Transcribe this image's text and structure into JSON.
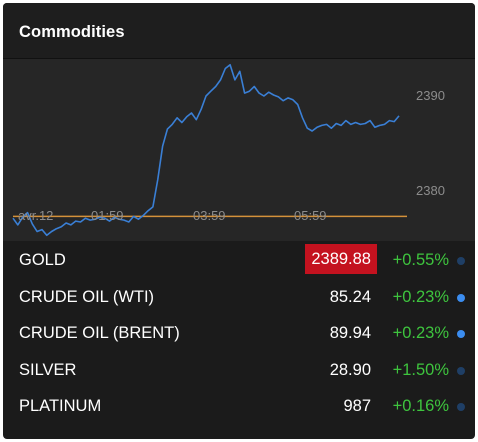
{
  "widget": {
    "title": "Commodities"
  },
  "chart_data": {
    "type": "line",
    "x_ticks": [
      "avr.12",
      "01:59",
      "03:59",
      "05:59"
    ],
    "y_ticks": [
      2390,
      2380
    ],
    "ylim": [
      2374.6,
      2393.8
    ],
    "reference_line": 2377.2,
    "line_color": "#3a7fd5",
    "reference_color": "#d4913a",
    "series": [
      {
        "values": [
          2377.0,
          2376.3,
          2377.1,
          2377.6,
          2376.4,
          2375.6,
          2375.8,
          2375.2,
          2375.6,
          2375.9,
          2376.1,
          2376.5,
          2376.3,
          2376.7,
          2376.6,
          2377.0,
          2376.8,
          2376.9,
          2377.1,
          2377.0,
          2376.7,
          2377.1,
          2376.9,
          2376.8,
          2376.6,
          2377.2,
          2376.9,
          2377.3,
          2377.8,
          2378.2,
          2381.1,
          2384.6,
          2386.4,
          2386.9,
          2387.6,
          2387.1,
          2387.7,
          2388.1,
          2387.4,
          2388.5,
          2389.9,
          2390.4,
          2390.9,
          2391.6,
          2392.8,
          2393.2,
          2391.6,
          2392.5,
          2390.2,
          2390.4,
          2390.9,
          2390.2,
          2389.9,
          2390.3,
          2390.0,
          2389.8,
          2389.4,
          2389.7,
          2389.5,
          2389.0,
          2387.6,
          2386.5,
          2386.2,
          2386.6,
          2386.8,
          2386.9,
          2386.5,
          2387.0,
          2386.8,
          2387.3,
          2386.9,
          2387.1,
          2386.9,
          2387.0,
          2387.3,
          2386.6,
          2386.8,
          2386.9,
          2387.3,
          2387.2,
          2387.8
        ]
      }
    ]
  },
  "rows": [
    {
      "name": "GOLD",
      "price": "2389.88",
      "change": "+0.55%",
      "highlight": true,
      "dot_color": "#1f3f66"
    },
    {
      "name": "CRUDE OIL (WTI)",
      "price": "85.24",
      "change": "+0.23%",
      "highlight": false,
      "dot_color": "#3b8df0"
    },
    {
      "name": "CRUDE OIL (BRENT)",
      "price": "89.94",
      "change": "+0.23%",
      "highlight": false,
      "dot_color": "#3b8df0"
    },
    {
      "name": "SILVER",
      "price": "28.90",
      "change": "+1.50%",
      "highlight": false,
      "dot_color": "#1f3f66"
    },
    {
      "name": "PLATINUM",
      "price": "987",
      "change": "+0.16%",
      "highlight": false,
      "dot_color": "#1f3f66"
    }
  ]
}
